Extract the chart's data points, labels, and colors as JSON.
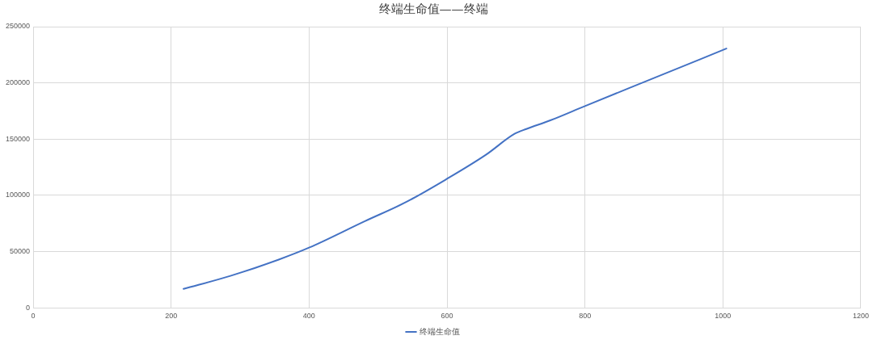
{
  "chart_data": {
    "type": "line",
    "title": "终端生命值——终端",
    "x": [
      218,
      286,
      356,
      400,
      481,
      539,
      600,
      656,
      698,
      715,
      749,
      800,
      900,
      1005
    ],
    "series": [
      {
        "name": "终端生命值",
        "color": "#4472c4",
        "values": [
          16800,
          28400,
          42900,
          53500,
          77100,
          93500,
          114700,
          135900,
          154700,
          159000,
          166500,
          179400,
          204300,
          230500
        ]
      }
    ],
    "xlim": [
      0,
      1200
    ],
    "xticks": [
      0,
      200,
      400,
      600,
      800,
      1000,
      1200
    ],
    "ylim": [
      0,
      250000
    ],
    "yticks": [
      0,
      50000,
      100000,
      150000,
      200000,
      250000
    ],
    "grid": true,
    "legend": "bottom",
    "marker": "none"
  }
}
